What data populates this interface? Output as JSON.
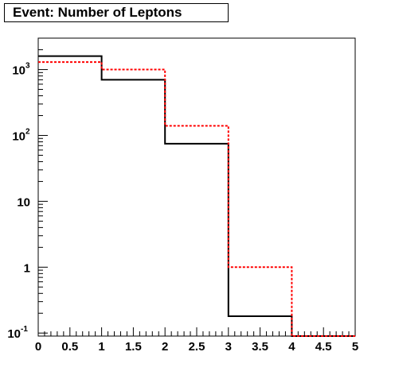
{
  "chart_data": {
    "type": "histogram-step",
    "title": "Event: Number of Leptons",
    "xlabel": "",
    "ylabel": "",
    "x_scale": "linear",
    "y_scale": "log",
    "xlim": [
      0,
      5
    ],
    "ylim": [
      0.09,
      3000
    ],
    "grid": false,
    "bin_edges": [
      0,
      1,
      2,
      3,
      4,
      5
    ],
    "x_tick_labels": [
      "0",
      "0.5",
      "1",
      "1.5",
      "2",
      "2.5",
      "3",
      "3.5",
      "4",
      "4.5",
      "5"
    ],
    "y_tick_labels": [
      {
        "base": "10",
        "exp": "-1",
        "value": 0.1
      },
      {
        "base": "1",
        "exp": "",
        "value": 1
      },
      {
        "base": "10",
        "exp": "",
        "value": 10
      },
      {
        "base": "10",
        "exp": "2",
        "value": 100
      },
      {
        "base": "10",
        "exp": "3",
        "value": 1000
      }
    ],
    "series": [
      {
        "values": [
          1600,
          700,
          75,
          0.18,
          0.09
        ],
        "color": "#000000",
        "style": "solid"
      },
      {
        "values": [
          1300,
          1000,
          140,
          1.0,
          0.09
        ],
        "color": "#ff0000",
        "style": "dashed"
      }
    ]
  }
}
